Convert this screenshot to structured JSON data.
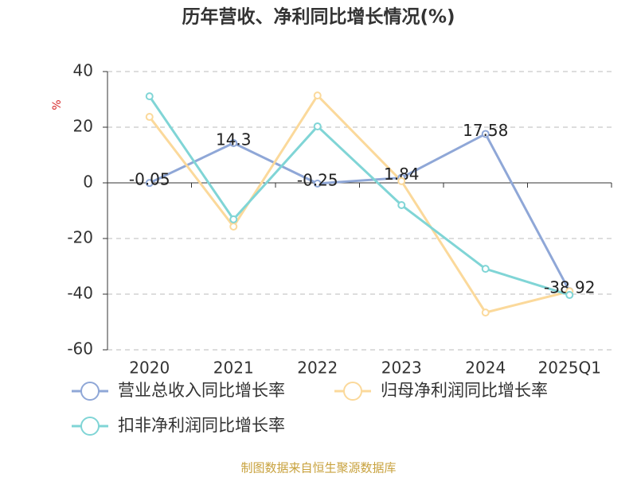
{
  "chart_data": {
    "type": "line",
    "title": "历年营收、净利同比增长情况(%)",
    "ylabel": "%",
    "source": "制图数据来自恒生聚源数据库",
    "categories": [
      "2020",
      "2021",
      "2022",
      "2023",
      "2024",
      "2025Q1"
    ],
    "series": [
      {
        "name": "营业总收入同比增长率",
        "color": "#8fa7d7",
        "values": [
          -0.05,
          14.3,
          -0.25,
          1.84,
          17.58,
          -38.92
        ],
        "labels": true
      },
      {
        "name": "归母净利润同比增长率",
        "color": "#fbd99b",
        "values": [
          23.7,
          -15.7,
          31.4,
          0.6,
          -46.6,
          -39.0
        ]
      },
      {
        "name": "扣非净利润同比增长率",
        "color": "#80d5d6",
        "values": [
          31.1,
          -13.1,
          20.3,
          -8.0,
          -30.9,
          -40.3
        ]
      }
    ],
    "ylim": [
      -60,
      40
    ],
    "yticks": [
      -60,
      -40,
      -20,
      0,
      20,
      40
    ],
    "grid": true
  }
}
